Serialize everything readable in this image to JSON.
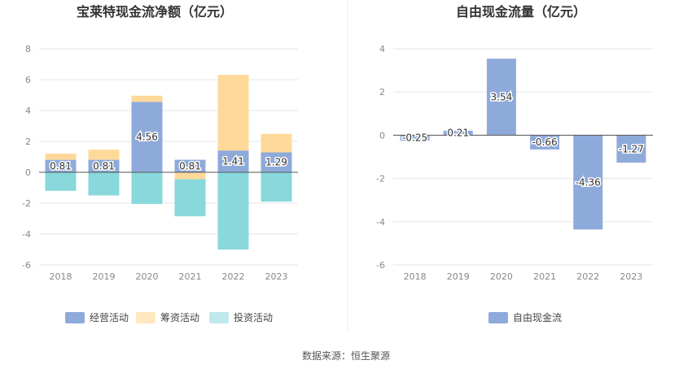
{
  "footer": {
    "source": "数据来源：恒生聚源"
  },
  "chart_data": [
    {
      "type": "bar",
      "stacked": true,
      "title": "宝莱特现金流净额（亿元）",
      "categories": [
        "2018",
        "2019",
        "2020",
        "2021",
        "2022",
        "2023"
      ],
      "ylim": [
        -6,
        8
      ],
      "yticks": [
        -6,
        -4,
        -2,
        0,
        2,
        4,
        6,
        8
      ],
      "grid": true,
      "legend_position": "bottom",
      "series": [
        {
          "name": "经营活动",
          "color": "#8eaadb",
          "values": [
            0.81,
            0.81,
            4.56,
            0.81,
            1.41,
            1.29
          ],
          "show_labels": true
        },
        {
          "name": "筹资活动",
          "color": "#ffd99a",
          "values": [
            0.4,
            0.65,
            0.4,
            -0.45,
            4.9,
            1.2
          ],
          "show_labels": false
        },
        {
          "name": "投资活动",
          "color": "#88d8dc",
          "values": [
            -1.2,
            -1.5,
            -2.05,
            -2.4,
            -5.0,
            -1.9
          ],
          "show_labels": false
        }
      ]
    },
    {
      "type": "bar",
      "title": "自由现金流量（亿元）",
      "categories": [
        "2018",
        "2019",
        "2020",
        "2021",
        "2022",
        "2023"
      ],
      "ylim": [
        -6,
        4
      ],
      "yticks": [
        -6,
        -4,
        -2,
        0,
        2,
        4
      ],
      "grid": true,
      "legend_position": "bottom",
      "series": [
        {
          "name": "自由现金流",
          "color": "#8eaadb",
          "values": [
            -0.25,
            0.21,
            3.54,
            -0.66,
            -4.36,
            -1.27
          ],
          "show_labels": true
        }
      ]
    }
  ]
}
